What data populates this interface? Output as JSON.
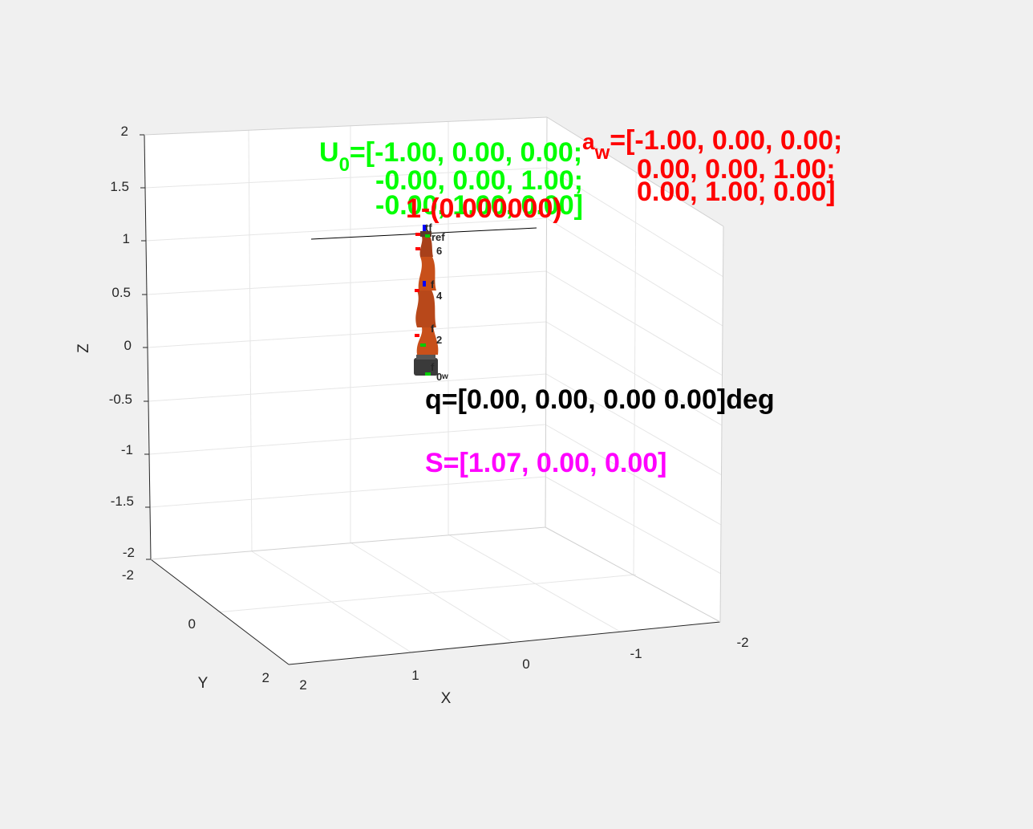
{
  "axes": {
    "z_ticks": [
      "2",
      "1.5",
      "1",
      "0.5",
      "0",
      "-0.5",
      "-1",
      "-1.5",
      "-2"
    ],
    "y_ticks": [
      "-2",
      "0",
      "2"
    ],
    "x_ticks": [
      "2",
      "1",
      "0",
      "-1",
      "-2"
    ],
    "xlabel": "X",
    "ylabel": "Y",
    "zlabel": "Z",
    "grid": true,
    "background": "#ffffff"
  },
  "annotations": {
    "u0": {
      "symbol": "U",
      "subscript": "0",
      "row1": "=[-1.00, 0.00, 0.00;",
      "row2": "-0.00, 0.00, 1.00;",
      "row3": "-0.00, 1.00, 0.00]"
    },
    "aw": {
      "symbol": "a",
      "subscript": "w",
      "row1": "=[-1.00, 0.00, 0.00;",
      "row2": "0.00, 0.00, 1.00;",
      "row3": "0.00, 1.00, 0.00]"
    },
    "step_label": "1-(0.000000)",
    "q_text": "q=[0.00, 0.00, 0.00 0.00]deg",
    "s_text": "S=[1.07, 0.00, 0.00]"
  },
  "robot_labels": {
    "tf": "tf",
    "ref": "ref",
    "joint6": "6",
    "joint4": "4",
    "joint2": "2",
    "base": "0",
    "base_w": "w",
    "frame_f1": "f",
    "frame_f2": "f",
    "frame_f3": "f"
  },
  "colors": {
    "green": "#00ff00",
    "red": "#ff0000",
    "magenta": "#ff00ff",
    "robot_orange": "#c8501a",
    "grid": "#e3e3e3"
  }
}
